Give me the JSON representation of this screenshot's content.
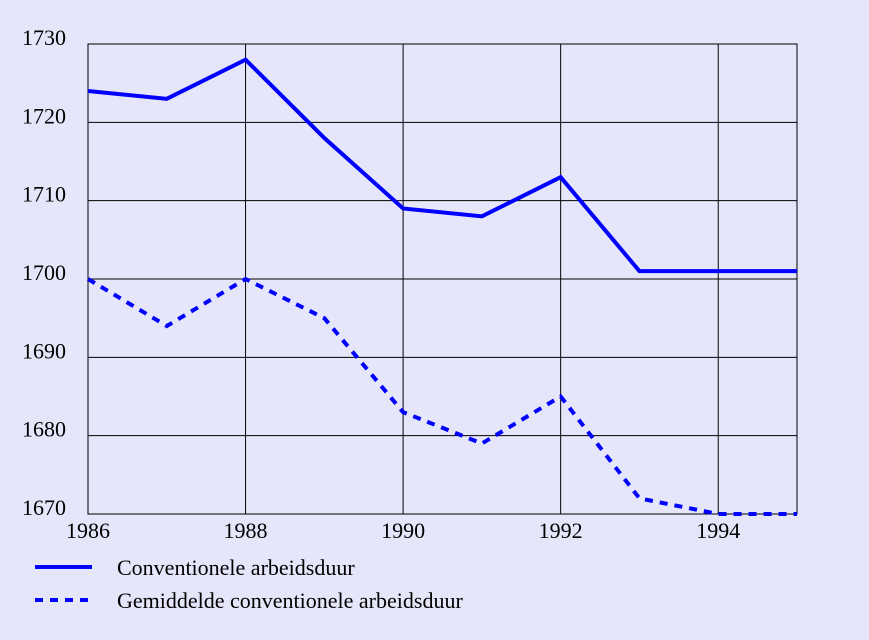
{
  "chart_data": {
    "type": "line",
    "x": [
      1986,
      1987,
      1988,
      1989,
      1990,
      1991,
      1992,
      1993,
      1994,
      1995
    ],
    "series": [
      {
        "name": "Conventionele arbeidsduur",
        "color": "#0000ff",
        "dash": false,
        "values": [
          1724,
          1723,
          1728,
          1718,
          1709,
          1708,
          1713,
          1701,
          1701,
          1701
        ]
      },
      {
        "name": "Gemiddelde conventionele arbeidsduur",
        "color": "#0000ff",
        "dash": true,
        "values": [
          1700,
          1694,
          1700,
          1695,
          1683,
          1679,
          1685,
          1672,
          1670,
          1670
        ]
      }
    ],
    "xlim": [
      1986,
      1995
    ],
    "xticks": [
      1986,
      1988,
      1990,
      1992,
      1994
    ],
    "ylim": [
      1670,
      1730
    ],
    "yticks": [
      1670,
      1680,
      1690,
      1700,
      1710,
      1720,
      1730
    ],
    "grid": true,
    "legend": "bottom"
  }
}
